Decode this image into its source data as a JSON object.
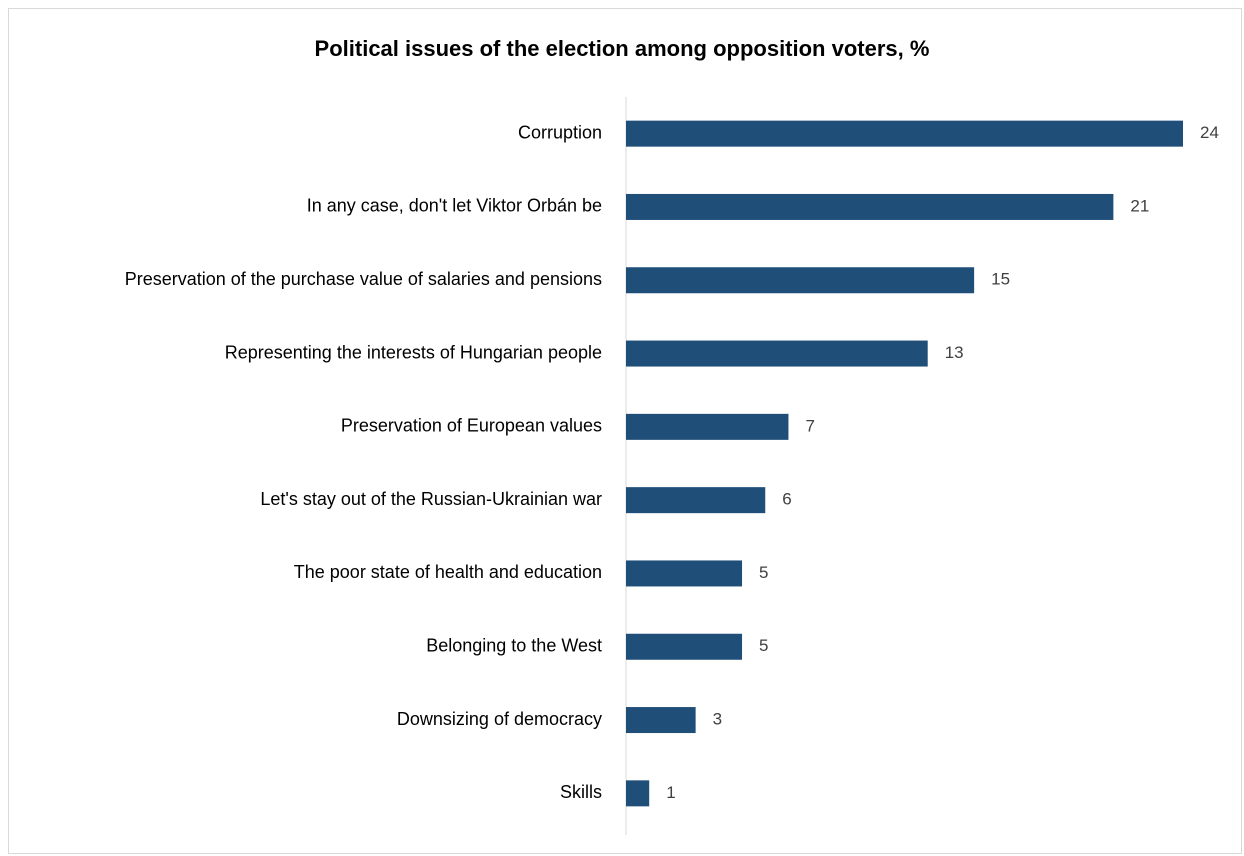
{
  "chart_data": {
    "type": "bar",
    "orientation": "horizontal",
    "title": "Political issues of the election among opposition voters, %",
    "categories": [
      "Corruption",
      "In any case, don't let Viktor Orbán be",
      "Preservation of the purchase value of salaries and pensions",
      "Representing the interests of Hungarian people",
      "Preservation of European values",
      "Let's stay out of the Russian-Ukrainian war",
      "The poor state of health and education",
      "Belonging to the West",
      "Downsizing of democracy",
      "Skills"
    ],
    "values": [
      24,
      21,
      15,
      13,
      7,
      6,
      5,
      5,
      3,
      1
    ],
    "xlim": [
      0,
      24
    ],
    "data_labels": true,
    "grid": false,
    "legend": "none",
    "bar_color": "#1f4e79"
  }
}
